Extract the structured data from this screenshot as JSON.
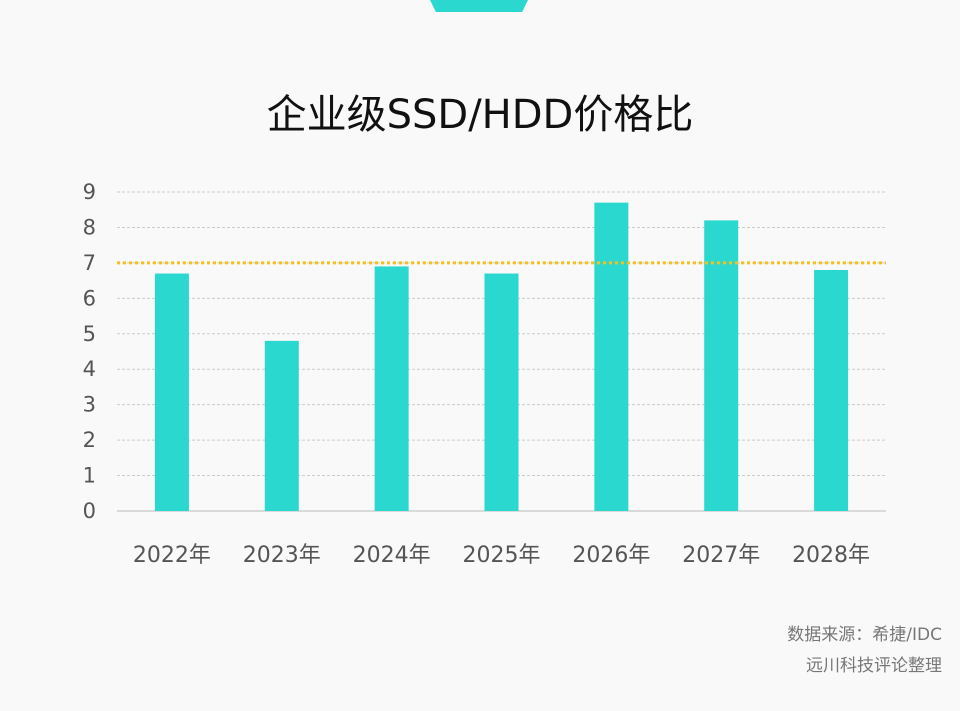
{
  "chart_data": {
    "type": "bar",
    "title": "企业级SSD/HDD价格比",
    "categories": [
      "2022年",
      "2023年",
      "2024年",
      "2025年",
      "2026年",
      "2027年",
      "2028年"
    ],
    "values": [
      6.7,
      4.8,
      6.9,
      6.7,
      8.7,
      8.2,
      6.8
    ],
    "reference_line": 7.0,
    "ylim": [
      0,
      9
    ],
    "yticks": [
      0,
      1,
      2,
      3,
      4,
      5,
      6,
      7,
      8,
      9
    ],
    "grid": true,
    "xlabel": "",
    "ylabel": "",
    "colors": {
      "bar": "#2ad8cf",
      "reference_line": "#f5c21b",
      "grid": "#cccccc"
    }
  },
  "source": {
    "line1": "数据来源：希捷/IDC",
    "line2": "远川科技评论整理"
  }
}
